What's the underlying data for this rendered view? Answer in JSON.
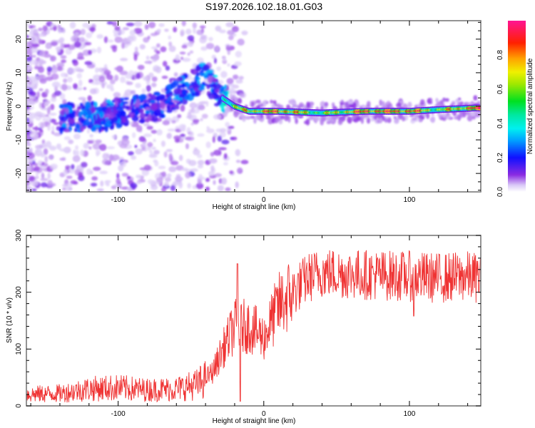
{
  "title": "S197.2026.102.18.01.G03",
  "chart_data": [
    {
      "type": "heatmap",
      "name": "spectrogram",
      "title": "S197.2026.102.18.01.G03",
      "xlabel": "Height of straight line (km)",
      "ylabel": "Frequency (Hz)",
      "xlim": [
        -163,
        149
      ],
      "ylim": [
        -25.5,
        25.5
      ],
      "xticks": [
        -100,
        0,
        100
      ],
      "yticks": [
        -20,
        -10,
        0,
        10,
        20
      ],
      "grid": false,
      "colorbar": {
        "label": "Normalized spectral amplitude",
        "range": [
          0,
          1
        ],
        "ticks": [
          "0.0",
          "0.2",
          "0.4",
          "0.6",
          "0.8"
        ],
        "colormap": [
          "#ffffff",
          "#cdb6f5",
          "#8a2be2",
          "#0000ff",
          "#00bfff",
          "#00ffe0",
          "#00e600",
          "#ffff00",
          "#ff8000",
          "#ff0000",
          "#ff1493"
        ]
      },
      "ridge": {
        "description": "dominant frequency ridge",
        "points": [
          {
            "x": -130,
            "y": -3.5,
            "amp": 0.3
          },
          {
            "x": -110,
            "y": -3,
            "amp": 0.3
          },
          {
            "x": -90,
            "y": -1,
            "amp": 0.25
          },
          {
            "x": -70,
            "y": 0.5,
            "amp": 0.25
          },
          {
            "x": -55,
            "y": 5,
            "amp": 0.3
          },
          {
            "x": -40,
            "y": 9,
            "amp": 0.3
          },
          {
            "x": -30,
            "y": 3,
            "amp": 0.4
          },
          {
            "x": -20,
            "y": 0,
            "amp": 0.6
          },
          {
            "x": -10,
            "y": -1.5,
            "amp": 0.75
          },
          {
            "x": 0,
            "y": -1.5,
            "amp": 0.8
          },
          {
            "x": 10,
            "y": -1.5,
            "amp": 0.9
          },
          {
            "x": 40,
            "y": -2,
            "amp": 0.55
          },
          {
            "x": 70,
            "y": -1.5,
            "amp": 0.9
          },
          {
            "x": 100,
            "y": -1.5,
            "amp": 0.9
          },
          {
            "x": 120,
            "y": -1,
            "amp": 0.6
          },
          {
            "x": 145,
            "y": -0.5,
            "amp": 0.9
          }
        ]
      }
    },
    {
      "type": "line",
      "name": "snr",
      "xlabel": "Height of straight line (km)",
      "ylabel": "SNR (10 * v/v)",
      "xlim": [
        -163,
        149
      ],
      "ylim": [
        0,
        300
      ],
      "xticks": [
        -100,
        0,
        100
      ],
      "yticks": [
        0,
        100,
        200,
        300
      ],
      "grid": false,
      "color": "#ee2222",
      "series": [
        {
          "name": "SNR envelope (mean)",
          "x": [
            -163,
            -140,
            -120,
            -100,
            -80,
            -60,
            -45,
            -35,
            -28,
            -20,
            -10,
            0,
            10,
            20,
            30,
            40,
            60,
            80,
            100,
            120,
            140,
            149
          ],
          "y": [
            20,
            22,
            30,
            32,
            28,
            30,
            38,
            60,
            100,
            140,
            140,
            120,
            175,
            200,
            225,
            235,
            232,
            230,
            228,
            225,
            228,
            225
          ]
        }
      ],
      "annotations": {
        "peak_near_x": -18,
        "peak_value": 250,
        "max_noise_top": 300
      }
    }
  ]
}
